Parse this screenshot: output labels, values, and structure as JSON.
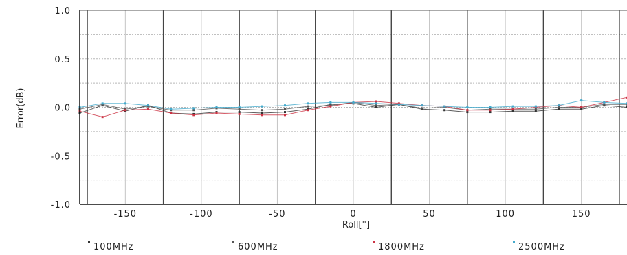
{
  "chart_data": {
    "type": "line",
    "xlabel": "Roll[°]",
    "ylabel": "Error(dB)",
    "xlim": [
      -180,
      180
    ],
    "ylim": [
      -1.0,
      1.0
    ],
    "xticks": [
      -150,
      -100,
      -50,
      0,
      50,
      100,
      150
    ],
    "xtick_labels": [
      "-150",
      "-100",
      "-50",
      "0",
      "50",
      "100",
      "150"
    ],
    "yticks": [
      1.0,
      0.5,
      0.0,
      -0.5,
      -1.0
    ],
    "ytick_labels": [
      "1.0",
      "0.5",
      "0.0",
      "-0.5",
      "-1.0"
    ],
    "grid": true,
    "legend_position": "bottom",
    "x": [
      -180,
      -165,
      -150,
      -135,
      -120,
      -105,
      -90,
      -75,
      -60,
      -45,
      -30,
      -15,
      0,
      15,
      30,
      45,
      60,
      75,
      90,
      105,
      120,
      135,
      150,
      165,
      180
    ],
    "series": [
      {
        "name": "100MHz",
        "color": "#333333",
        "values": [
          -0.06,
          0.02,
          -0.04,
          0.02,
          -0.06,
          -0.07,
          -0.05,
          -0.05,
          -0.06,
          -0.05,
          -0.02,
          0.03,
          0.04,
          0.0,
          0.03,
          -0.02,
          -0.03,
          -0.05,
          -0.05,
          -0.04,
          -0.04,
          -0.02,
          -0.02,
          0.02,
          0.0
        ]
      },
      {
        "name": "600MHz",
        "color": "#555555",
        "values": [
          -0.02,
          0.03,
          -0.02,
          0.01,
          -0.03,
          -0.03,
          -0.01,
          -0.02,
          -0.03,
          -0.02,
          0.01,
          0.02,
          0.05,
          0.02,
          0.03,
          -0.01,
          0.0,
          -0.03,
          -0.02,
          -0.02,
          -0.02,
          0.0,
          0.0,
          0.03,
          0.03
        ]
      },
      {
        "name": "1800MHz",
        "color": "#cc3344",
        "values": [
          -0.04,
          -0.1,
          -0.03,
          -0.02,
          -0.06,
          -0.08,
          -0.06,
          -0.07,
          -0.08,
          -0.08,
          -0.03,
          0.01,
          0.05,
          0.06,
          0.04,
          0.02,
          0.01,
          -0.03,
          -0.03,
          -0.02,
          0.0,
          0.02,
          0.0,
          0.05,
          0.1
        ]
      },
      {
        "name": "2500MHz",
        "color": "#44aacc",
        "values": [
          0.0,
          0.04,
          0.04,
          0.02,
          -0.02,
          -0.01,
          0.0,
          0.0,
          0.01,
          0.02,
          0.04,
          0.05,
          0.05,
          0.04,
          0.03,
          0.02,
          0.01,
          0.0,
          0.0,
          0.01,
          0.01,
          0.02,
          0.07,
          0.05,
          0.04
        ]
      }
    ]
  }
}
